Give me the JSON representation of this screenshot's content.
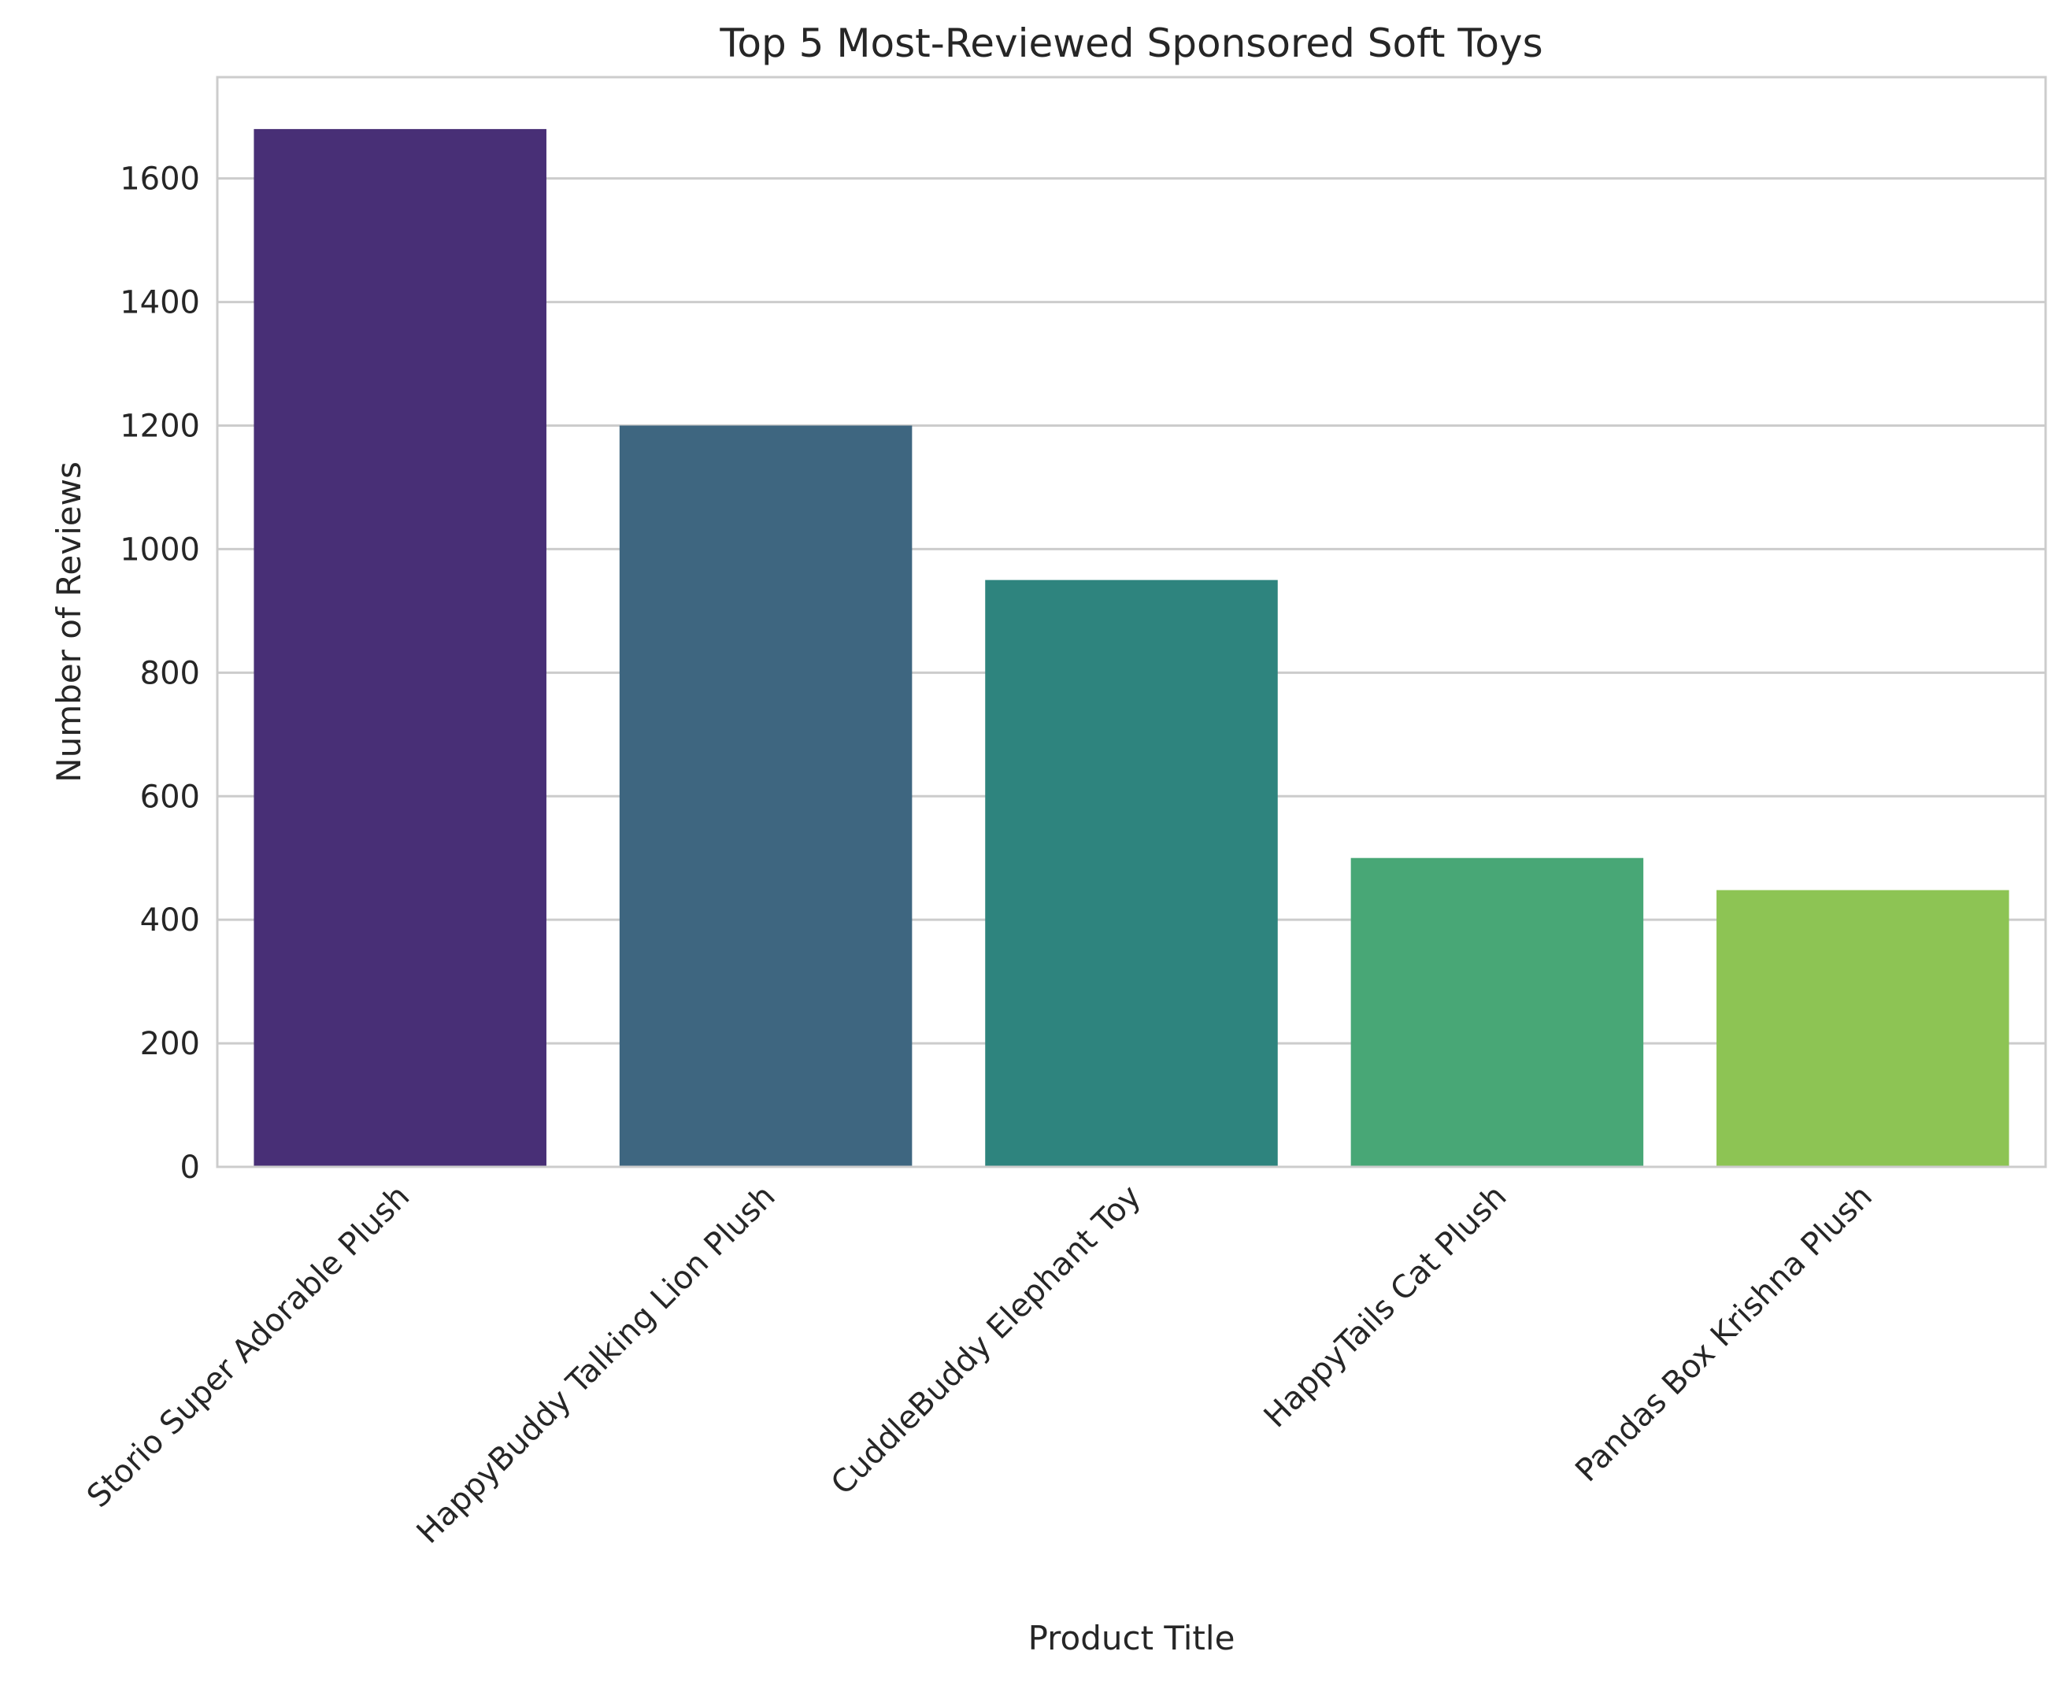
{
  "chart_data": {
    "type": "bar",
    "title": "Top 5 Most-Reviewed Sponsored Soft Toys",
    "xlabel": "Product Title",
    "ylabel": "Number of Reviews",
    "categories": [
      "Storio Super Adorable Plush",
      "HappyBuddy Talking Lion Plush",
      "CuddleBuddy Elephant Toy",
      "HappyTails Cat Plush",
      "Pandas Box Krishna Plush"
    ],
    "values": [
      1680,
      1200,
      950,
      500,
      448
    ],
    "ylim": [
      0,
      1764
    ],
    "yticks": [
      0,
      200,
      400,
      600,
      800,
      1000,
      1200,
      1400,
      1600
    ],
    "grid": true,
    "colors": [
      "#482f76",
      "#3e6680",
      "#2e847e",
      "#48a776",
      "#8dc454"
    ]
  }
}
